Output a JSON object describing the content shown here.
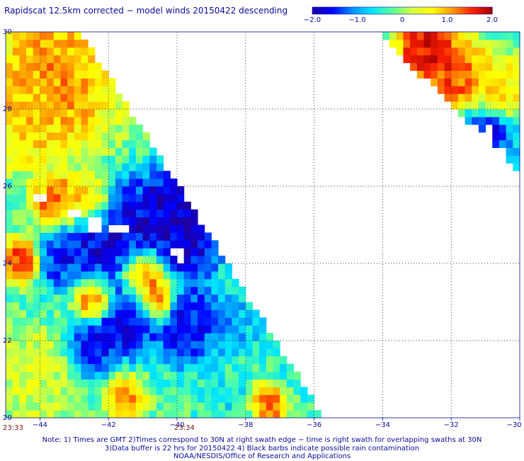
{
  "title": "Rapidscat 12.5km corrected − model winds 20150422 descending",
  "colorbar": {
    "ticks": [
      "−2.0",
      "−1.0",
      "0",
      "1.0",
      "2.0"
    ],
    "range": [
      -2.0,
      2.0
    ],
    "colors": [
      "#1e00a0",
      "#0000ff",
      "#0090ff",
      "#00e6ff",
      "#5aff9a",
      "#d6ff3c",
      "#ffff00",
      "#ff9a00",
      "#ff2000",
      "#a00000"
    ]
  },
  "chart_data": {
    "type": "heatmap",
    "title": "Rapidscat 12.5km corrected − model winds 20150422 descending",
    "xlabel": "",
    "ylabel": "",
    "x_range": [
      -45,
      -30
    ],
    "y_range": [
      20,
      30
    ],
    "x_ticks": [
      -44,
      -42,
      -40,
      -38,
      -36,
      -34,
      -32,
      -30
    ],
    "x_tick_labels": [
      "−44",
      "−42",
      "−40",
      "−38",
      "−36",
      "−34",
      "−32",
      "−30"
    ],
    "y_ticks": [
      20,
      22,
      24,
      26,
      28,
      30
    ],
    "y_tick_labels": [
      "20",
      "22",
      "24",
      "26",
      "28",
      "30"
    ],
    "grid": true,
    "value_range": [
      -2.0,
      2.0
    ],
    "time_labels": [
      {
        "text": "23:33",
        "lon": -45.0
      },
      {
        "text": "23:34",
        "lon": -40.0
      }
    ],
    "regions": [
      {
        "lon": -43.5,
        "lat": 28.8,
        "value": 1.3,
        "radius": 1.3
      },
      {
        "lon": -44.5,
        "lat": 27.6,
        "value": 0.9,
        "radius": 0.8
      },
      {
        "lon": -41.5,
        "lat": 28.8,
        "value": 0.4,
        "radius": 0.8
      },
      {
        "lon": -43.5,
        "lat": 25.6,
        "value": 1.6,
        "radius": 0.5
      },
      {
        "lon": -42.6,
        "lat": 25.6,
        "value": 1.4,
        "radius": 0.5
      },
      {
        "lon": -40.2,
        "lat": 25.2,
        "value": -2.0,
        "radius": 0.9
      },
      {
        "lon": -39.6,
        "lat": 24.4,
        "value": -1.8,
        "radius": 0.6
      },
      {
        "lon": -42.0,
        "lat": 24.6,
        "value": -1.9,
        "radius": 1.0
      },
      {
        "lon": -43.5,
        "lat": 24.2,
        "value": -1.6,
        "radius": 0.5
      },
      {
        "lon": -44.5,
        "lat": 24.1,
        "value": 1.8,
        "radius": 0.4
      },
      {
        "lon": -41.0,
        "lat": 23.7,
        "value": 1.9,
        "radius": 0.5
      },
      {
        "lon": -40.6,
        "lat": 23.0,
        "value": 1.7,
        "radius": 0.4
      },
      {
        "lon": -42.4,
        "lat": 23.1,
        "value": 1.8,
        "radius": 0.4
      },
      {
        "lon": -41.5,
        "lat": 22.6,
        "value": -1.9,
        "radius": 0.7
      },
      {
        "lon": -39.7,
        "lat": 22.4,
        "value": -1.8,
        "radius": 0.7
      },
      {
        "lon": -42.5,
        "lat": 21.8,
        "value": -1.7,
        "radius": 0.5
      },
      {
        "lon": -38.4,
        "lat": 22.5,
        "value": -1.0,
        "radius": 0.6
      },
      {
        "lon": -44.3,
        "lat": 21.0,
        "value": 0.4,
        "radius": 0.9
      },
      {
        "lon": -41.5,
        "lat": 20.5,
        "value": 1.3,
        "radius": 0.4
      },
      {
        "lon": -37.3,
        "lat": 20.4,
        "value": 1.6,
        "radius": 0.4
      },
      {
        "lon": -36.6,
        "lat": 21.4,
        "value": -0.5,
        "radius": 0.6
      },
      {
        "lon": -38.5,
        "lat": 20.4,
        "value": -0.6,
        "radius": 0.5
      },
      {
        "lon": -32.7,
        "lat": 29.5,
        "value": 2.0,
        "radius": 0.6
      },
      {
        "lon": -31.8,
        "lat": 28.8,
        "value": 1.6,
        "radius": 0.7
      },
      {
        "lon": -30.6,
        "lat": 28.5,
        "value": 0.9,
        "radius": 0.6
      },
      {
        "lon": -31.0,
        "lat": 27.4,
        "value": -1.9,
        "radius": 0.6
      },
      {
        "lon": -30.4,
        "lat": 26.8,
        "value": -0.8,
        "radius": 0.4
      }
    ],
    "swaths": [
      {
        "name": "left swath",
        "vertices": [
          [
            -45.0,
            30.0
          ],
          [
            -42.8,
            30.0
          ],
          [
            -35.7,
            20.0
          ],
          [
            -45.0,
            20.0
          ]
        ]
      },
      {
        "name": "right swath",
        "vertices": [
          [
            -34.2,
            30.0
          ],
          [
            -30.0,
            30.0
          ],
          [
            -30.0,
            26.4
          ]
        ]
      }
    ],
    "missing_cells": [
      {
        "lon": -43.0,
        "lat": 25.3
      },
      {
        "lon": -42.4,
        "lat": 25.0
      },
      {
        "lon": -41.8,
        "lat": 24.9
      },
      {
        "lon": -41.6,
        "lat": 24.9
      },
      {
        "lon": -40.0,
        "lat": 24.3
      },
      {
        "lon": -39.9,
        "lat": 24.1
      },
      {
        "lon": -44.0,
        "lat": 25.7
      },
      {
        "lon": -30.9,
        "lat": 27.4
      },
      {
        "lon": -30.6,
        "lat": 26.8
      }
    ]
  },
  "notes": [
    "Note: 1) Times are GMT 2)Times correspond to 30N at right swath edge − time is right swath for overlapping swaths at 30N",
    "3)Data buffer is 22 hrs for 20150422 4) Black barbs indicate possible rain contamination",
    "NOAA/NESDIS/Office of Research and Applications"
  ]
}
